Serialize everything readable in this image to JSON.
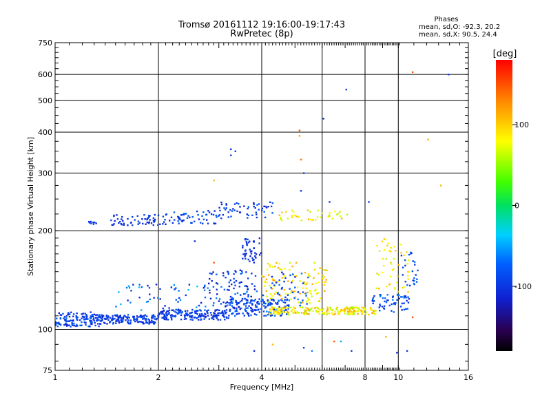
{
  "chart_data": {
    "type": "scatter",
    "title": "Tromsø 20161112 19:16:00-19:17:43",
    "subtitle": "RwPretec (8p)",
    "xlabel": "Frequency [MHz]",
    "ylabel": "Stationary phase Virtual Height [km]",
    "x_scale": "log",
    "y_scale": "log",
    "xlim": [
      1,
      16
    ],
    "ylim": [
      75,
      750
    ],
    "x_ticks": [
      1,
      2,
      4,
      6,
      8,
      10,
      16
    ],
    "x_tick_labels": [
      "1",
      "2",
      "4",
      "6",
      "8",
      "10",
      "16"
    ],
    "y_ticks": [
      75,
      100,
      200,
      300,
      400,
      500,
      600,
      750
    ],
    "y_tick_labels": [
      "75",
      "100",
      "200",
      "300",
      "400",
      "500",
      "600",
      "750"
    ],
    "grid": true,
    "legend": {
      "title": "Phases",
      "lines": [
        "mean, sd,O: -92.3, 20.2",
        "mean, sd,X:  90.5, 24.4"
      ]
    },
    "colorbar": {
      "label": "[deg]",
      "range": [
        -180,
        180
      ],
      "ticks": [
        100,
        0,
        -100
      ],
      "tick_labels": [
        "100",
        "0",
        "-100"
      ]
    },
    "clusters": [
      {
        "x": [
          1.0,
          1.35
        ],
        "y": [
          102,
          113
        ],
        "phase": [
          -115,
          -70
        ],
        "n": 140
      },
      {
        "x": [
          1.35,
          2.0
        ],
        "y": [
          104,
          111
        ],
        "phase": [
          -115,
          -80
        ],
        "n": 150
      },
      {
        "x": [
          2.0,
          3.2
        ],
        "y": [
          107,
          115
        ],
        "phase": [
          -115,
          -80
        ],
        "n": 170
      },
      {
        "x": [
          3.2,
          4.8
        ],
        "y": [
          110,
          124
        ],
        "phase": [
          -115,
          -60
        ],
        "n": 150
      },
      {
        "x": [
          4.2,
          8.6
        ],
        "y": [
          111,
          117
        ],
        "phase": [
          50,
          120
        ],
        "n": 200
      },
      {
        "x": [
          8.2,
          10.8
        ],
        "y": [
          113,
          128
        ],
        "phase": [
          -110,
          -60
        ],
        "n": 60
      },
      {
        "x": [
          1.5,
          2.8
        ],
        "y": [
          112,
          138
        ],
        "phase": [
          -120,
          -40
        ],
        "n": 60
      },
      {
        "x": [
          2.8,
          3.9
        ],
        "y": [
          115,
          152
        ],
        "phase": [
          -130,
          -60
        ],
        "n": 110
      },
      {
        "x": [
          3.5,
          4.0
        ],
        "y": [
          160,
          190
        ],
        "phase": [
          -120,
          -90
        ],
        "n": 45
      },
      {
        "x": [
          4.0,
          6.2
        ],
        "y": [
          120,
          160
        ],
        "phase": [
          60,
          120
        ],
        "n": 120
      },
      {
        "x": [
          4.0,
          5.5
        ],
        "y": [
          118,
          150
        ],
        "phase": [
          -120,
          -60
        ],
        "n": 50
      },
      {
        "x": [
          1.25,
          1.32
        ],
        "y": [
          209,
          214
        ],
        "phase": [
          -110,
          -90
        ],
        "n": 8
      },
      {
        "x": [
          1.45,
          2.1
        ],
        "y": [
          208,
          224
        ],
        "phase": [
          -115,
          -85
        ],
        "n": 60
      },
      {
        "x": [
          2.1,
          3.0
        ],
        "y": [
          210,
          232
        ],
        "phase": [
          -115,
          -70
        ],
        "n": 55
      },
      {
        "x": [
          3.0,
          4.3
        ],
        "y": [
          218,
          245
        ],
        "phase": [
          -120,
          -70
        ],
        "n": 55
      },
      {
        "x": [
          4.5,
          7.2
        ],
        "y": [
          215,
          232
        ],
        "phase": [
          50,
          120
        ],
        "n": 40
      },
      {
        "x": [
          8.6,
          10.8
        ],
        "y": [
          130,
          190
        ],
        "phase": [
          60,
          110
        ],
        "n": 50
      },
      {
        "x": [
          10.2,
          11.4
        ],
        "y": [
          135,
          175
        ],
        "phase": [
          -110,
          -60
        ],
        "n": 25
      }
    ],
    "points": [
      {
        "x": 3.25,
        "y": 355,
        "phase": -100
      },
      {
        "x": 3.35,
        "y": 350,
        "phase": -90
      },
      {
        "x": 3.25,
        "y": 340,
        "phase": -95
      },
      {
        "x": 5.15,
        "y": 405,
        "phase": 150
      },
      {
        "x": 5.15,
        "y": 390,
        "phase": 120
      },
      {
        "x": 5.2,
        "y": 330,
        "phase": 140
      },
      {
        "x": 5.3,
        "y": 300,
        "phase": -90
      },
      {
        "x": 6.05,
        "y": 440,
        "phase": -110
      },
      {
        "x": 7.05,
        "y": 540,
        "phase": -100
      },
      {
        "x": 11.0,
        "y": 610,
        "phase": 150
      },
      {
        "x": 14.0,
        "y": 600,
        "phase": -100
      },
      {
        "x": 12.2,
        "y": 380,
        "phase": 110
      },
      {
        "x": 13.3,
        "y": 275,
        "phase": 110
      },
      {
        "x": 2.9,
        "y": 285,
        "phase": 110
      },
      {
        "x": 5.2,
        "y": 265,
        "phase": -100
      },
      {
        "x": 4.3,
        "y": 90,
        "phase": 110
      },
      {
        "x": 5.3,
        "y": 88,
        "phase": -90
      },
      {
        "x": 5.6,
        "y": 86,
        "phase": -60
      },
      {
        "x": 6.5,
        "y": 92,
        "phase": 150
      },
      {
        "x": 7.3,
        "y": 86,
        "phase": -100
      },
      {
        "x": 9.2,
        "y": 95,
        "phase": 110
      },
      {
        "x": 10.6,
        "y": 86,
        "phase": -100
      },
      {
        "x": 9.9,
        "y": 85,
        "phase": -110
      },
      {
        "x": 3.8,
        "y": 86,
        "phase": -110
      },
      {
        "x": 11.0,
        "y": 109,
        "phase": 150
      },
      {
        "x": 6.3,
        "y": 245,
        "phase": -100
      },
      {
        "x": 8.2,
        "y": 245,
        "phase": -95
      },
      {
        "x": 2.55,
        "y": 186,
        "phase": -110
      },
      {
        "x": 2.9,
        "y": 160,
        "phase": 150
      },
      {
        "x": 6.8,
        "y": 92,
        "phase": -50
      }
    ]
  }
}
